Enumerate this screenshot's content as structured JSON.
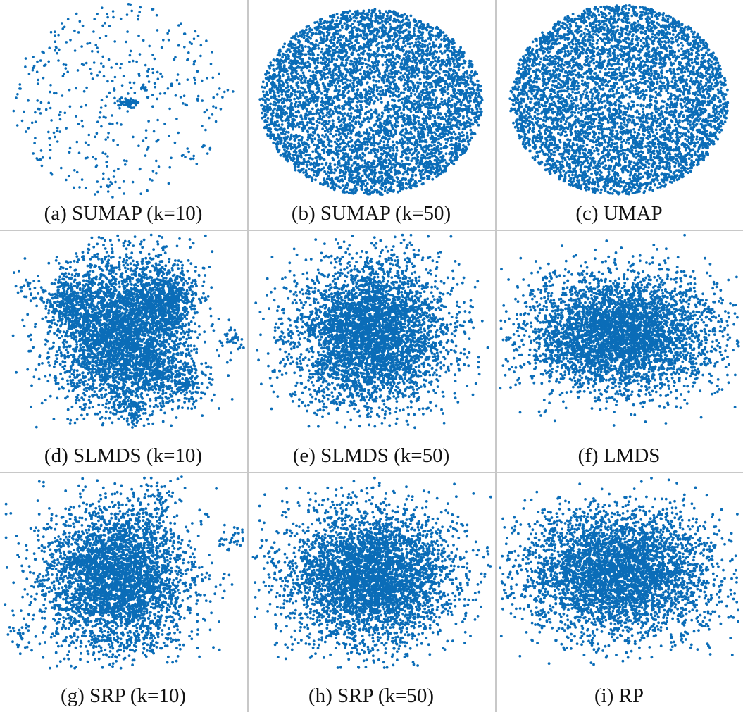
{
  "point_color": "#0b6db8",
  "chart_data": [
    {
      "id": "a",
      "type": "scatter",
      "caption": "(a) SUMAP (k=10)",
      "x": [],
      "y": []
    },
    {
      "id": "b",
      "type": "scatter",
      "caption": "(b) SUMAP (k=50)",
      "x": [],
      "y": []
    },
    {
      "id": "c",
      "type": "scatter",
      "caption": "(c) UMAP",
      "x": [],
      "y": []
    },
    {
      "id": "d",
      "type": "scatter",
      "caption": "(d) SLMDS (k=10)",
      "x": [],
      "y": []
    },
    {
      "id": "e",
      "type": "scatter",
      "caption": "(e) SLMDS (k=50)",
      "x": [],
      "y": []
    },
    {
      "id": "f",
      "type": "scatter",
      "caption": "(f) LMDS",
      "x": [],
      "y": []
    },
    {
      "id": "g",
      "type": "scatter",
      "caption": "(g) SRP (k=10)",
      "x": [],
      "y": []
    },
    {
      "id": "h",
      "type": "scatter",
      "caption": "(h) SRP (k=50)",
      "x": [],
      "y": []
    },
    {
      "id": "i",
      "type": "scatter",
      "caption": "(i) RP",
      "x": [],
      "y": []
    }
  ]
}
